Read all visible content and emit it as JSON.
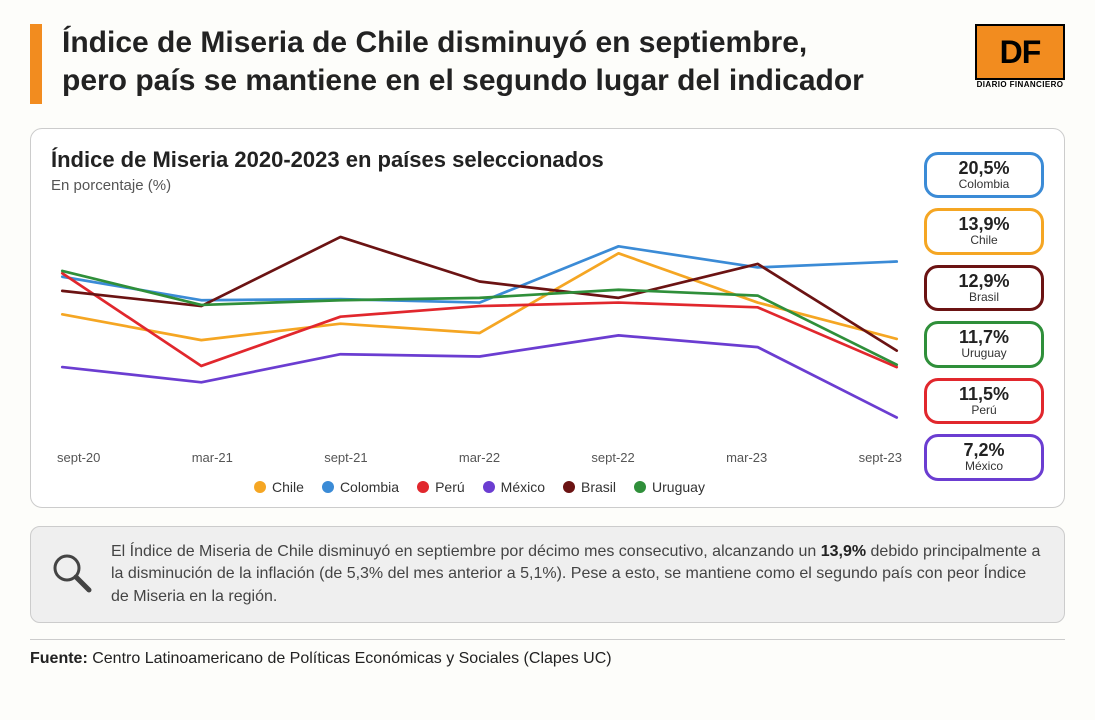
{
  "headline_l1": "Índice de Miseria de Chile disminuyó en septiembre,",
  "headline_l2": "pero país se mantiene en el segundo lugar del indicador",
  "logo_text": "DF",
  "logo_sub": "DIARIO FINANCIERO",
  "chart": {
    "title": "Índice de Miseria 2020-2023 en países seleccionados",
    "subtitle": "En porcentaje (%)",
    "type": "line",
    "x_labels": [
      "sept-20",
      "mar-21",
      "sept-21",
      "mar-22",
      "sept-22",
      "mar-23",
      "sept-23"
    ],
    "ylim": [
      5,
      25
    ],
    "line_width": 2.4,
    "background_color": "#ffffff",
    "series": [
      {
        "name": "Chile",
        "color": "#f5a623",
        "y": [
          16.0,
          13.8,
          15.2,
          14.4,
          21.2,
          17.0,
          13.9
        ]
      },
      {
        "name": "Colombia",
        "color": "#3b8bd6",
        "y": [
          19.2,
          17.2,
          17.3,
          17.0,
          21.8,
          20.0,
          20.5
        ]
      },
      {
        "name": "Perú",
        "color": "#e1272d",
        "y": [
          19.5,
          11.6,
          15.8,
          16.7,
          17.0,
          16.6,
          11.5
        ]
      },
      {
        "name": "México",
        "color": "#6b3dd1",
        "y": [
          11.5,
          10.2,
          12.6,
          12.4,
          14.2,
          13.2,
          7.2
        ]
      },
      {
        "name": "Brasil",
        "color": "#6b1313",
        "y": [
          18.0,
          16.7,
          22.6,
          18.8,
          17.4,
          20.3,
          12.9
        ]
      },
      {
        "name": "Uruguay",
        "color": "#2f8f3a",
        "y": [
          19.7,
          16.8,
          17.2,
          17.4,
          18.1,
          17.6,
          11.7
        ]
      }
    ],
    "legend_order": [
      "Chile",
      "Colombia",
      "Perú",
      "México",
      "Brasil",
      "Uruguay"
    ]
  },
  "pills": [
    {
      "value": "20,5%",
      "label": "Colombia",
      "color": "#3b8bd6"
    },
    {
      "value": "13,9%",
      "label": "Chile",
      "color": "#f5a623"
    },
    {
      "value": "12,9%",
      "label": "Brasil",
      "color": "#6b1313"
    },
    {
      "value": "11,7%",
      "label": "Uruguay",
      "color": "#2f8f3a"
    },
    {
      "value": "11,5%",
      "label": "Perú",
      "color": "#e1272d"
    },
    {
      "value": "7,2%",
      "label": "México",
      "color": "#6b3dd1"
    }
  ],
  "callout_pre": "El Índice de Miseria de Chile disminuyó en septiembre por décimo mes consecutivo, alcanzando un ",
  "callout_bold": "13,9%",
  "callout_post": " debido principalmente a la disminución de la inflación (de 5,3% del mes anterior a 5,1%). Pese a esto, se mantiene como el segundo país con peor Índice de Miseria en la región.",
  "source_label": "Fuente:",
  "source_text": " Centro Latinoamericano de Políticas Económicas y Sociales (Clapes UC)"
}
